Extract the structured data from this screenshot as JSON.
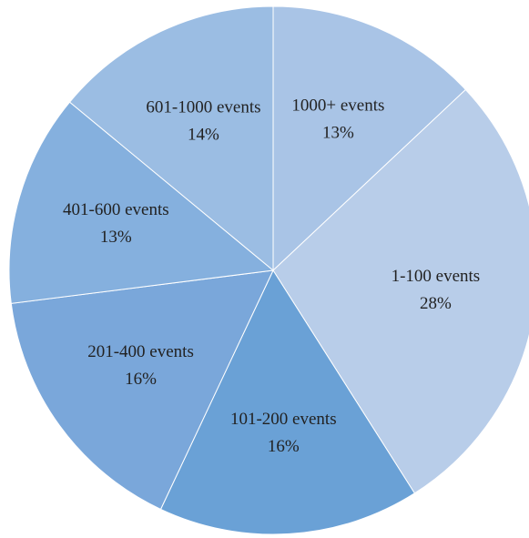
{
  "chart_data": {
    "type": "pie",
    "categories": [
      "1000+ events",
      "1-100 events",
      "101-200 events",
      "201-400 events",
      "401-600 events",
      "601-1000 events"
    ],
    "values": [
      13,
      28,
      16,
      16,
      13,
      14
    ],
    "value_labels": [
      "13%",
      "28%",
      "16%",
      "16%",
      "13%",
      "14%"
    ],
    "colors": [
      "#a9c4e6",
      "#b8cde9",
      "#6aa1d6",
      "#7aa7da",
      "#85b0de",
      "#9bbde3"
    ]
  }
}
